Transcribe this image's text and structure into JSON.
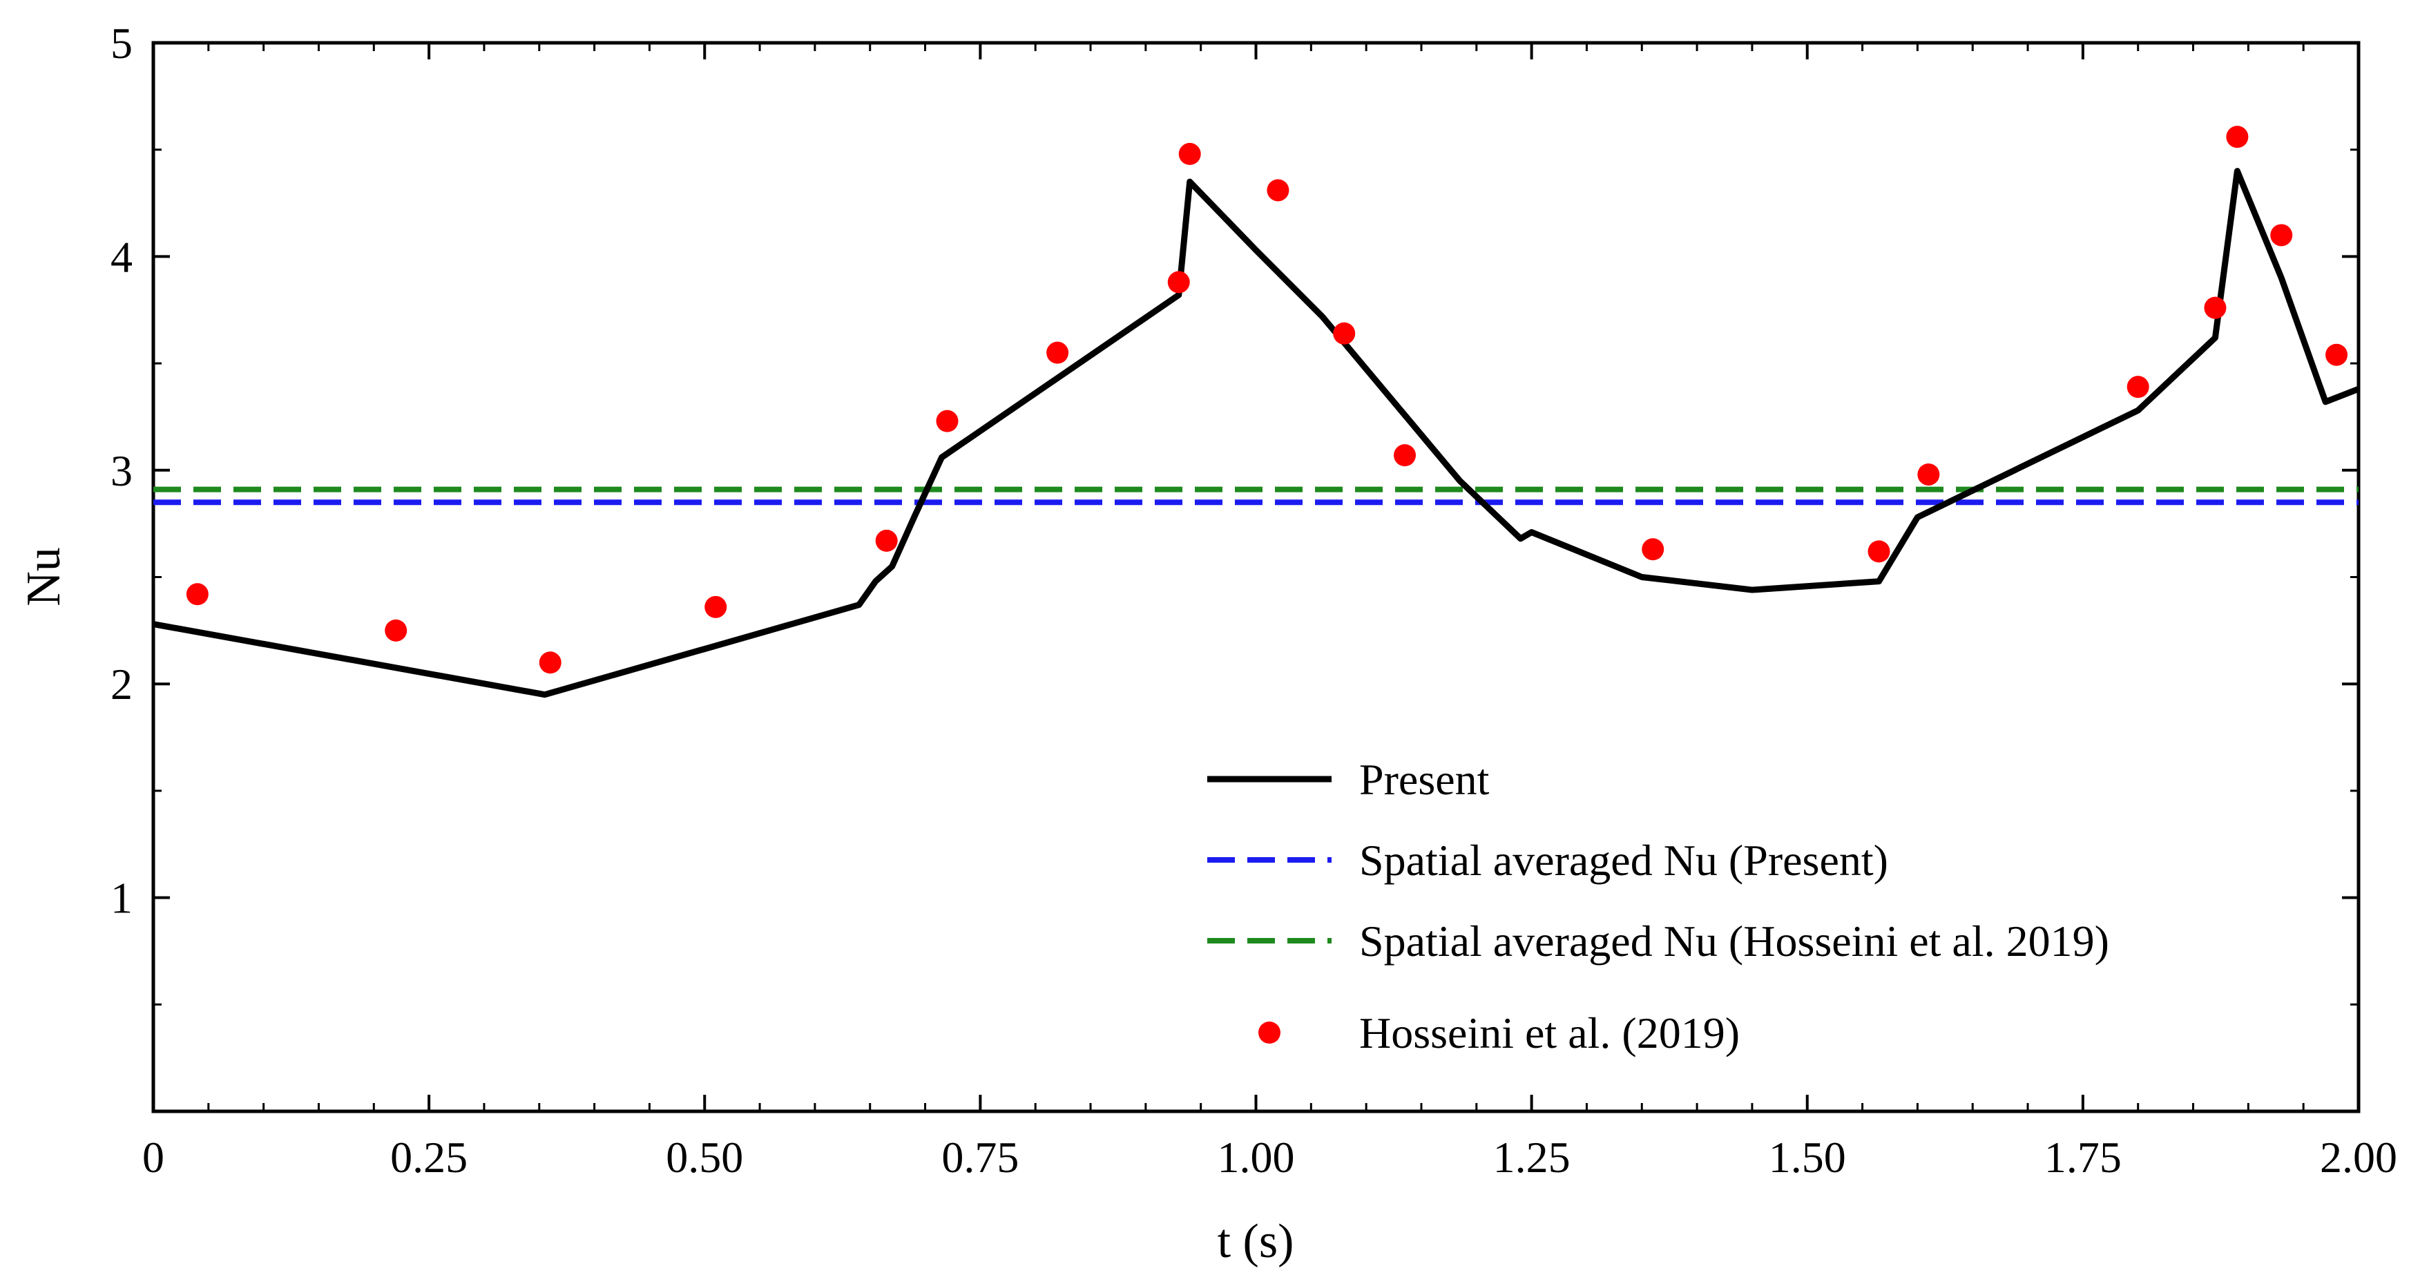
{
  "chart_data": {
    "type": "line",
    "title": "",
    "xlabel": "t (s)",
    "ylabel": "Nu",
    "xlim": [
      0,
      2.0
    ],
    "ylim": [
      0,
      5
    ],
    "grid": false,
    "legend_position": "bottom-right",
    "x_ticks": [
      0,
      0.25,
      0.5,
      0.75,
      1.0,
      1.25,
      1.5,
      1.75,
      2.0
    ],
    "x_tick_labels": [
      "0",
      "0.25",
      "0.50",
      "0.75",
      "1.00",
      "1.25",
      "1.50",
      "1.75",
      "2.00"
    ],
    "y_ticks": [
      1,
      2,
      3,
      4,
      5
    ],
    "y_tick_labels": [
      "1",
      "2",
      "3",
      "4",
      "5"
    ],
    "series": [
      {
        "name": "Present",
        "kind": "line",
        "color": "#000000",
        "dash": "solid",
        "x": [
          0.0,
          0.355,
          0.64,
          0.655,
          0.67,
          0.69,
          0.715,
          0.93,
          0.94,
          1.0,
          1.06,
          1.185,
          1.24,
          1.25,
          1.35,
          1.45,
          1.565,
          1.6,
          1.64,
          1.8,
          1.87,
          1.89,
          1.93,
          1.97,
          2.0
        ],
        "y": [
          2.28,
          1.95,
          2.37,
          2.48,
          2.55,
          2.78,
          3.06,
          3.82,
          4.35,
          4.03,
          3.72,
          2.95,
          2.68,
          2.71,
          2.5,
          2.44,
          2.48,
          2.78,
          2.88,
          3.28,
          3.62,
          4.4,
          3.9,
          3.32,
          3.38
        ]
      },
      {
        "name": "Spatial averaged Nu (Present)",
        "kind": "hline",
        "color": "#1c1cf0",
        "dash": "dashed",
        "value": 2.85
      },
      {
        "name": "Spatial averaged Nu (Hosseini et al. 2019)",
        "kind": "hline",
        "color": "#1e8a1e",
        "dash": "dashed",
        "value": 2.91
      },
      {
        "name": "Hosseini et al. (2019)",
        "kind": "scatter",
        "color": "#ff0000",
        "x": [
          0.04,
          0.22,
          0.36,
          0.51,
          0.665,
          0.72,
          0.82,
          0.93,
          0.94,
          1.02,
          1.08,
          1.135,
          1.36,
          1.565,
          1.61,
          1.8,
          1.87,
          1.89,
          1.93,
          1.98
        ],
        "y": [
          2.42,
          2.25,
          2.1,
          2.36,
          2.67,
          3.23,
          3.55,
          3.88,
          4.48,
          4.31,
          3.64,
          3.07,
          2.63,
          2.62,
          2.98,
          3.39,
          3.76,
          4.56,
          4.1,
          3.54
        ]
      }
    ]
  }
}
